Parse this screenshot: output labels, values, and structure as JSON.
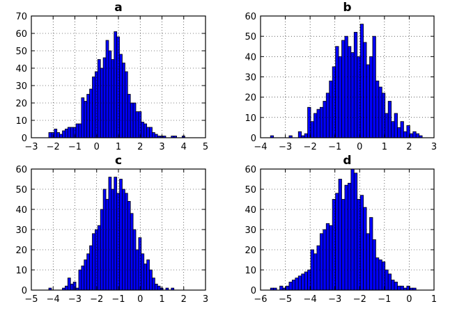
{
  "chart_data": [
    {
      "type": "bar",
      "title": "a",
      "xlabel": "",
      "ylabel": "",
      "xlim": [
        -3,
        5
      ],
      "ylim": [
        0,
        70
      ],
      "xticks": [
        "−3",
        "−2",
        "−1",
        "0",
        "1",
        "2",
        "3",
        "4",
        "5"
      ],
      "yticks": [
        "0",
        "10",
        "20",
        "30",
        "40",
        "50",
        "60",
        "70"
      ],
      "grid": true,
      "bin_color": "#0000ff",
      "bins_left_edge": -2.2,
      "bin_width": 0.125,
      "values": [
        3,
        3,
        5,
        3,
        2,
        4,
        5,
        6,
        6,
        6,
        8,
        8,
        23,
        21,
        25,
        28,
        35,
        38,
        45,
        40,
        46,
        56,
        50,
        45,
        61,
        58,
        48,
        43,
        38,
        25,
        20,
        20,
        15,
        15,
        9,
        8,
        6,
        6,
        3,
        2,
        1,
        1,
        1,
        0,
        0,
        1,
        1,
        0,
        0,
        1
      ]
    },
    {
      "type": "bar",
      "title": "b",
      "xlabel": "",
      "ylabel": "",
      "xlim": [
        -4,
        3
      ],
      "ylim": [
        0,
        60
      ],
      "xticks": [
        "−4",
        "−3",
        "−2",
        "−1",
        "0",
        "1",
        "2",
        "3"
      ],
      "yticks": [
        "0",
        "10",
        "20",
        "30",
        "40",
        "50",
        "60"
      ],
      "grid": true,
      "bin_color": "#0000ff",
      "bins_left_edge": -3.6,
      "bin_width": 0.125,
      "values": [
        1,
        0,
        0,
        0,
        0,
        0,
        1,
        0,
        0,
        3,
        1,
        2,
        15,
        8,
        12,
        14,
        15,
        18,
        22,
        28,
        35,
        45,
        40,
        48,
        50,
        45,
        42,
        52,
        40,
        56,
        47,
        36,
        40,
        50,
        28,
        25,
        22,
        12,
        18,
        8,
        12,
        5,
        8,
        3,
        6,
        2,
        3,
        2,
        1,
        0
      ]
    },
    {
      "type": "bar",
      "title": "c",
      "xlabel": "",
      "ylabel": "",
      "xlim": [
        -5,
        3
      ],
      "ylim": [
        0,
        60
      ],
      "xticks": [
        "−5",
        "−4",
        "−3",
        "−2",
        "−1",
        "0",
        "1",
        "2",
        "3"
      ],
      "yticks": [
        "0",
        "10",
        "20",
        "30",
        "40",
        "50",
        "60"
      ],
      "grid": true,
      "bin_color": "#0000ff",
      "bins_left_edge": -4.2,
      "bin_width": 0.125,
      "values": [
        1,
        0,
        0,
        0,
        0,
        1,
        2,
        6,
        3,
        4,
        1,
        10,
        12,
        15,
        18,
        22,
        28,
        30,
        32,
        40,
        50,
        45,
        56,
        50,
        56,
        48,
        55,
        50,
        48,
        44,
        38,
        30,
        20,
        26,
        18,
        13,
        15,
        10,
        6,
        3,
        2,
        1,
        0,
        1,
        0,
        1,
        0,
        0,
        0,
        0
      ]
    },
    {
      "type": "bar",
      "title": "d",
      "xlabel": "",
      "ylabel": "",
      "xlim": [
        -6,
        1
      ],
      "ylim": [
        0,
        60
      ],
      "xticks": [
        "−6",
        "−5",
        "−4",
        "−3",
        "−2",
        "−1",
        "0",
        "1"
      ],
      "yticks": [
        "0",
        "10",
        "20",
        "30",
        "40",
        "50",
        "60"
      ],
      "grid": true,
      "bin_color": "#0000ff",
      "bins_left_edge": -5.6,
      "bin_width": 0.125,
      "values": [
        1,
        1,
        0,
        2,
        1,
        2,
        4,
        5,
        6,
        7,
        8,
        9,
        10,
        20,
        18,
        22,
        28,
        30,
        33,
        32,
        45,
        48,
        55,
        45,
        52,
        53,
        60,
        58,
        45,
        47,
        41,
        28,
        36,
        25,
        16,
        15,
        14,
        10,
        8,
        5,
        4,
        2,
        2,
        1,
        2,
        1,
        1,
        0,
        0,
        0
      ]
    }
  ]
}
